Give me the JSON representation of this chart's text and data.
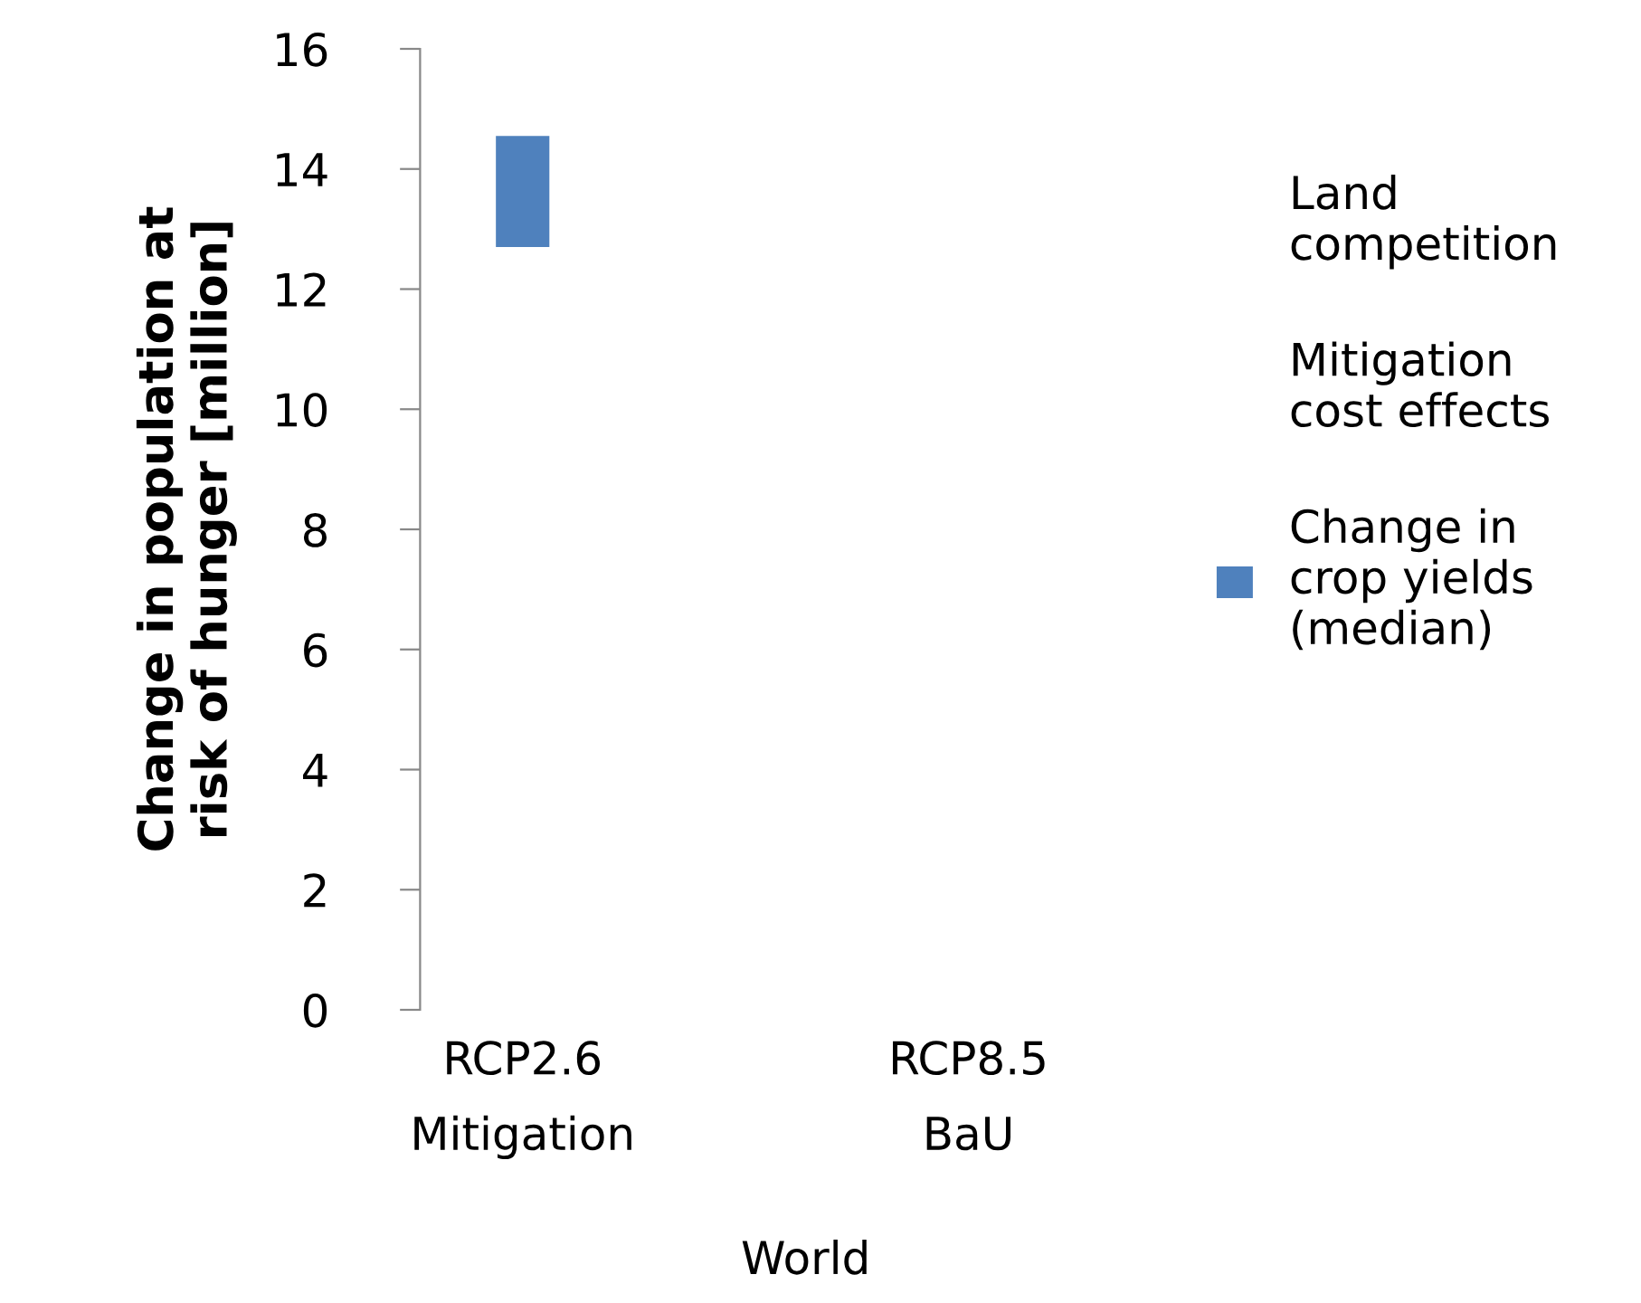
{
  "chart_data": {
    "type": "bar",
    "xlabel": "World",
    "ylabel": "Change in population at\nrisk of hunger [million]",
    "categories": [
      "RCP2.6",
      "RCP8.5"
    ],
    "annotations": [
      "Mitigation",
      "BaU"
    ],
    "series": [
      {
        "name": "Land competition",
        "values": [
          null,
          null
        ]
      },
      {
        "name": "Mitigation cost effects",
        "values": [
          null,
          null
        ]
      },
      {
        "name": "Change in crop yields (median)",
        "color": "#4f81bd",
        "base": [
          12.7,
          null
        ],
        "values": [
          1.85,
          null
        ]
      }
    ],
    "ylim": [
      0,
      16
    ],
    "yticks": [
      0,
      2,
      4,
      6,
      8,
      10,
      12,
      14,
      16
    ],
    "legend": "right",
    "grid": false
  }
}
